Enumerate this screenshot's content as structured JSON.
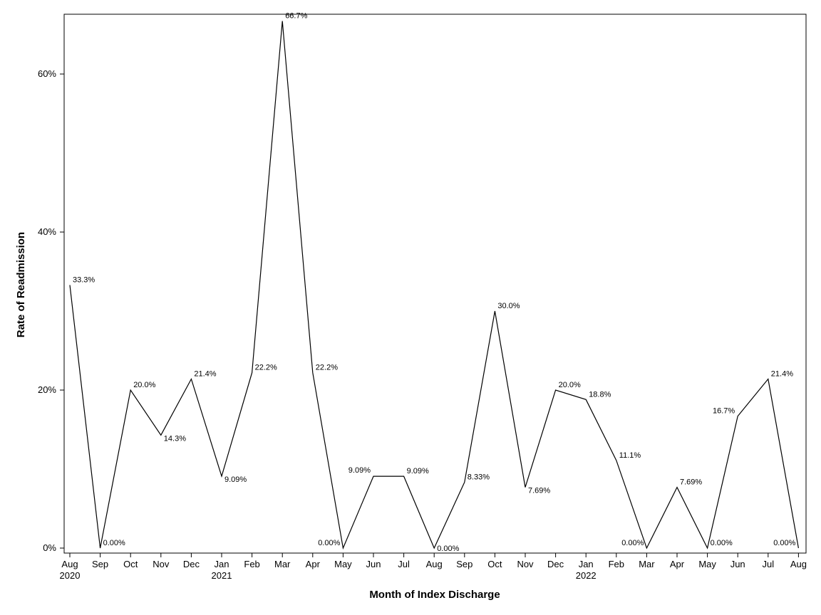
{
  "chart_data": {
    "type": "line",
    "xlabel": "Month of Index Discharge",
    "ylabel": "Rate of Readmission",
    "ylim": [
      0,
      0.67
    ],
    "y_ticks": [
      {
        "value": 0,
        "label": "0%"
      },
      {
        "value": 0.2,
        "label": "20%"
      },
      {
        "value": 0.4,
        "label": "40%"
      },
      {
        "value": 0.6,
        "label": "60%"
      }
    ],
    "grid": false,
    "legend": "none",
    "x": [
      "2020-08",
      "2020-09",
      "2020-10",
      "2020-11",
      "2020-12",
      "2021-01",
      "2021-02",
      "2021-03",
      "2021-04",
      "2021-05",
      "2021-06",
      "2021-07",
      "2021-08",
      "2021-09",
      "2021-10",
      "2021-11",
      "2021-12",
      "2022-01",
      "2022-02",
      "2022-03",
      "2022-04",
      "2022-05",
      "2022-06",
      "2022-07",
      "2022-08"
    ],
    "x_tick_labels": [
      "Aug",
      "Sep",
      "Oct",
      "Nov",
      "Dec",
      "Jan",
      "Feb",
      "Mar",
      "Apr",
      "May",
      "Jun",
      "Jul",
      "Aug",
      "Sep",
      "Oct",
      "Nov",
      "Dec",
      "Jan",
      "Feb",
      "Mar",
      "Apr",
      "May",
      "Jun",
      "Jul",
      "Aug"
    ],
    "x_tick_sublabels": [
      "2020",
      "",
      "",
      "",
      "",
      "2021",
      "",
      "",
      "",
      "",
      "",
      "",
      "",
      "",
      "",
      "",
      "",
      "2022",
      "",
      "",
      "",
      "",
      "",
      "",
      ""
    ],
    "values": [
      0.333,
      0,
      0.2,
      0.143,
      0.214,
      0.0909,
      0.222,
      0.667,
      0.222,
      0,
      0.0909,
      0.0909,
      0,
      0.0833,
      0.3,
      0.0769,
      0.2,
      0.188,
      0.111,
      0,
      0.0769,
      0,
      0.167,
      0.214,
      0
    ],
    "data_labels": [
      "33.3%",
      "0.00%",
      "20.0%",
      "14.3%",
      "21.4%",
      "9.09%",
      "22.2%",
      "66.7%",
      "22.2%",
      "0.00%",
      "9.09%",
      "9.09%",
      "0.00%",
      "8.33%",
      "30.0%",
      "7.69%",
      "20.0%",
      "18.8%",
      "11.1%",
      "0.00%",
      "7.69%",
      "0.00%",
      "16.7%",
      "21.4%",
      "0.00%"
    ],
    "colors": {
      "line": "#000000",
      "axis": "#000000"
    }
  }
}
